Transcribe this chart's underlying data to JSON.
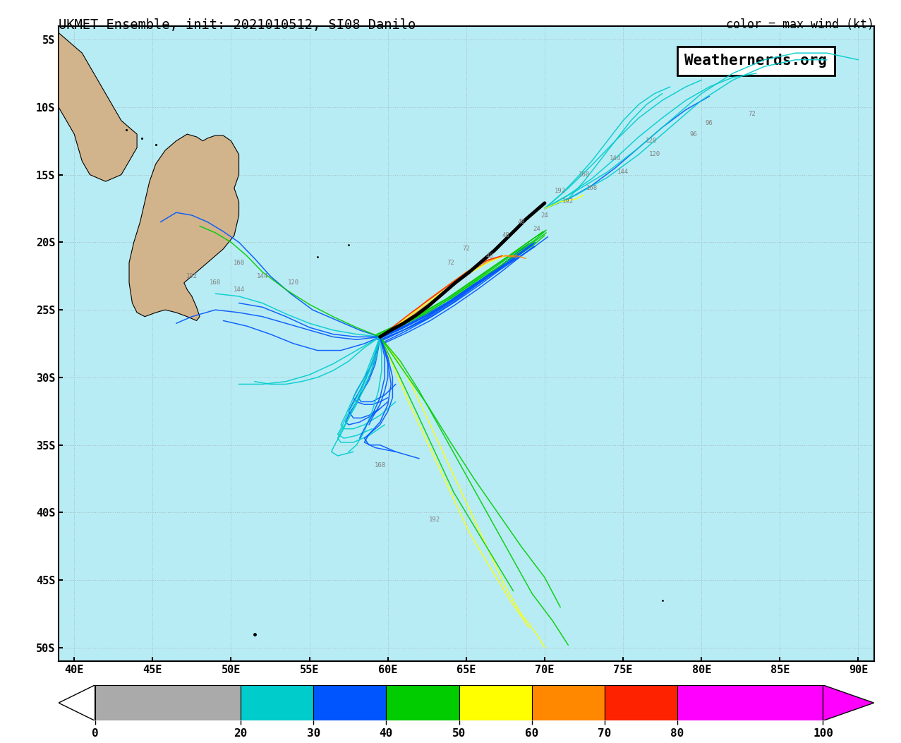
{
  "title": "UKMET Ensemble, init: 2021010512, SI08 Danilo",
  "color_label": "color = max wind (kt)",
  "watermark": "Weathernerds.org",
  "bg_color": "#b8ecf4",
  "land_color": "#d2b48c",
  "map_extent": [
    39,
    91,
    -51,
    -4
  ],
  "xticks": [
    40,
    45,
    50,
    55,
    60,
    65,
    70,
    75,
    80,
    85,
    90
  ],
  "yticks": [
    -5,
    -10,
    -15,
    -20,
    -25,
    -30,
    -35,
    -40,
    -45,
    -50
  ],
  "xlabel_labels": [
    "40E",
    "45E",
    "50E",
    "55E",
    "60E",
    "65E",
    "70E",
    "75E",
    "80E",
    "85E",
    "90E"
  ],
  "ylabel_labels": [
    "5S",
    "10S",
    "15S",
    "20S",
    "25S",
    "30S",
    "35S",
    "40S",
    "45S",
    "50S"
  ],
  "colorbar_boundaries": [
    0,
    20,
    30,
    40,
    50,
    60,
    70,
    80,
    100
  ],
  "colorbar_colors": [
    "#aaaaaa",
    "#00cccc",
    "#0055ff",
    "#00cc00",
    "#ffff00",
    "#ff8800",
    "#ff2200",
    "#ff00ff"
  ],
  "grid_color": "#999999",
  "grid_alpha": 0.6,
  "grid_linestyle": ":"
}
